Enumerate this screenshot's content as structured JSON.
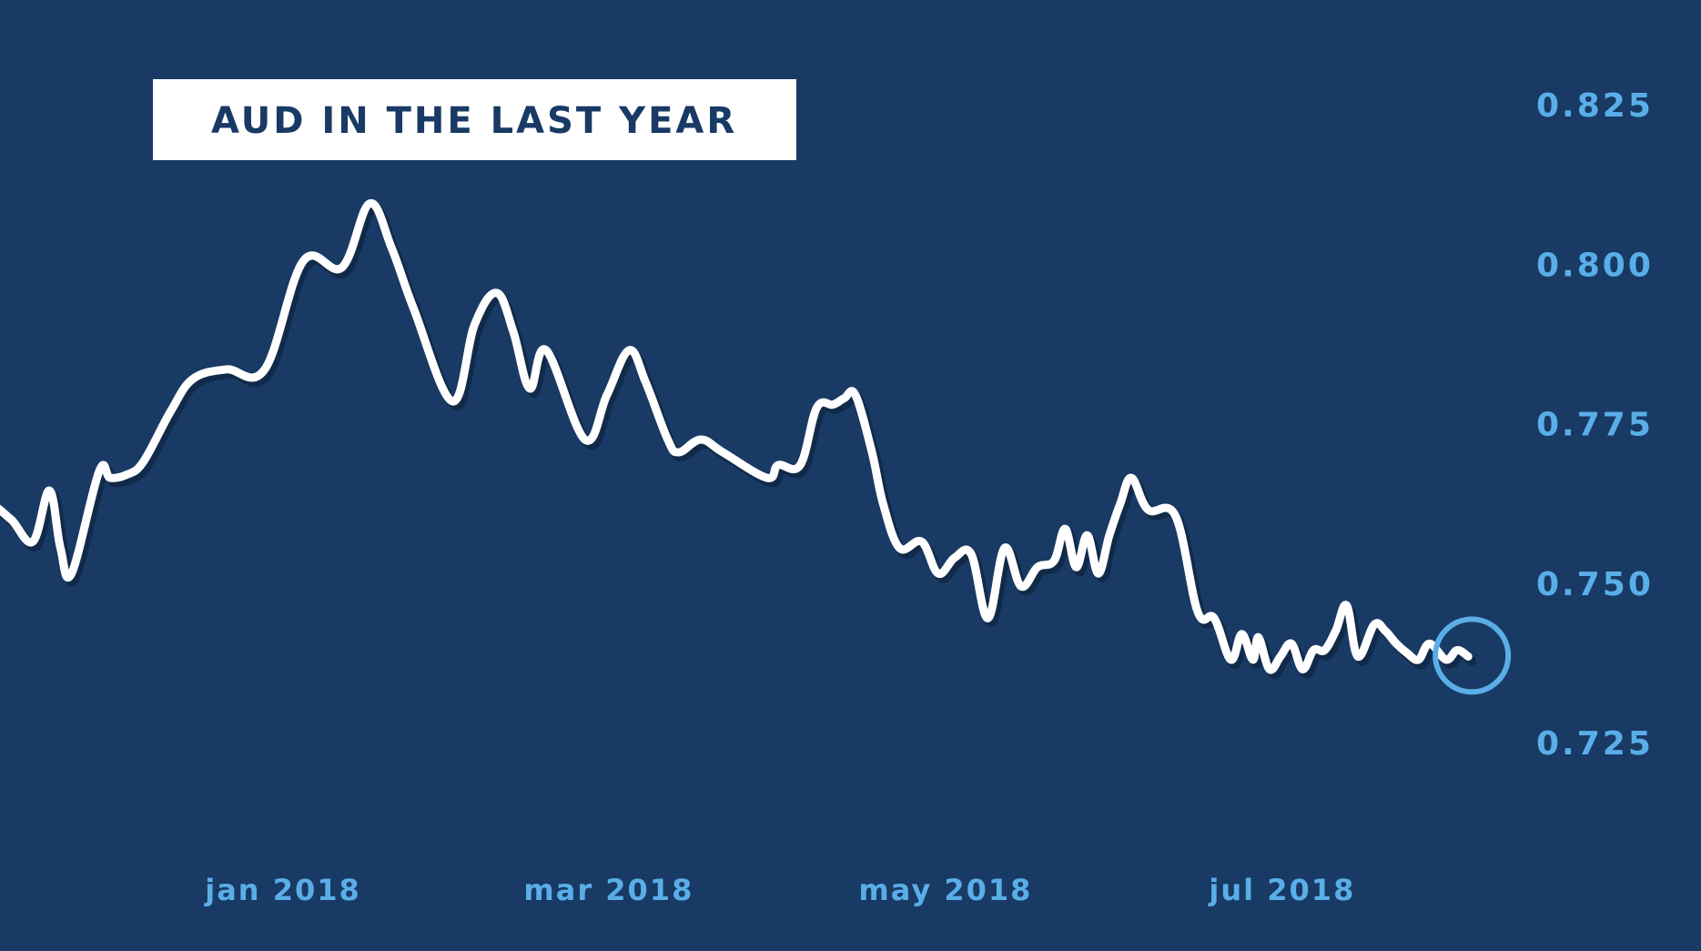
{
  "chart_data": {
    "type": "line",
    "title": "AUD IN THE LAST YEAR",
    "xlabel": "",
    "ylabel": "",
    "x_tick_labels": [
      "jan 2018",
      "mar 2018",
      "may 2018",
      "jul 2018"
    ],
    "y_tick_labels": [
      "0.825",
      "0.800",
      "0.775",
      "0.750",
      "0.725"
    ],
    "y_ticks": [
      0.825,
      0.8,
      0.775,
      0.75,
      0.725
    ],
    "ylim": [
      0.7125,
      0.8375
    ],
    "xlim": [
      "2017-11-08",
      "2018-09-15"
    ],
    "grid": true,
    "legend": "none",
    "x": [
      "2017-11-08",
      "2017-11-10",
      "2017-11-14",
      "2017-11-18",
      "2017-11-21",
      "2017-11-23",
      "2017-11-25",
      "2017-11-30",
      "2017-12-02",
      "2017-12-05",
      "2017-12-08",
      "2017-12-13",
      "2017-12-17",
      "2017-12-23",
      "2017-12-30",
      "2018-01-06",
      "2018-01-13",
      "2018-01-18",
      "2018-01-22",
      "2018-01-26",
      "2018-02-02",
      "2018-02-06",
      "2018-02-10",
      "2018-02-13",
      "2018-02-16",
      "2018-02-19",
      "2018-02-26",
      "2018-03-02",
      "2018-03-06",
      "2018-03-09",
      "2018-03-13",
      "2018-03-15",
      "2018-03-19",
      "2018-03-23",
      "2018-03-31",
      "2018-04-02",
      "2018-04-06",
      "2018-04-09",
      "2018-04-12",
      "2018-04-14",
      "2018-04-16",
      "2018-04-19",
      "2018-04-21",
      "2018-04-24",
      "2018-04-28",
      "2018-05-01",
      "2018-05-04",
      "2018-05-07",
      "2018-05-10",
      "2018-05-13",
      "2018-05-16",
      "2018-05-19",
      "2018-05-22",
      "2018-05-24",
      "2018-05-26",
      "2018-05-28",
      "2018-05-30",
      "2018-06-01",
      "2018-06-03",
      "2018-06-05",
      "2018-06-08",
      "2018-06-13",
      "2018-06-17",
      "2018-06-20",
      "2018-06-23",
      "2018-06-25",
      "2018-06-27",
      "2018-06-28",
      "2018-06-30",
      "2018-07-02",
      "2018-07-04",
      "2018-07-06",
      "2018-07-08",
      "2018-07-10",
      "2018-07-12",
      "2018-07-14",
      "2018-07-16",
      "2018-07-19",
      "2018-07-21",
      "2018-07-23",
      "2018-07-25",
      "2018-07-27",
      "2018-07-29",
      "2018-08-01",
      "2018-08-03",
      "2018-08-05"
    ],
    "series": [
      {
        "values": [
          0.7565,
          0.762,
          0.76,
          0.7565,
          0.7645,
          0.7555,
          0.7515,
          0.7675,
          0.7665,
          0.767,
          0.769,
          0.777,
          0.782,
          0.7835,
          0.7835,
          0.8005,
          0.7995,
          0.8095,
          0.8025,
          0.793,
          0.7785,
          0.7905,
          0.7955,
          0.7895,
          0.7805,
          0.7865,
          0.7725,
          0.7795,
          0.7865,
          0.7815,
          0.7725,
          0.7705,
          0.7725,
          0.7705,
          0.7665,
          0.7685,
          0.7685,
          0.7775,
          0.778,
          0.779,
          0.7795,
          0.7705,
          0.7625,
          0.7555,
          0.7565,
          0.7515,
          0.754,
          0.7545,
          0.7445,
          0.7555,
          0.7495,
          0.7525,
          0.7535,
          0.7585,
          0.7525,
          0.7575,
          0.7515,
          0.7575,
          0.7625,
          0.7665,
          0.7615,
          0.7605,
          0.7455,
          0.7445,
          0.738,
          0.742,
          0.738,
          0.7415,
          0.7365,
          0.7385,
          0.7405,
          0.7365,
          0.7395,
          0.7395,
          0.7425,
          0.7465,
          0.7385,
          0.7435,
          0.7425,
          0.7405,
          0.739,
          0.738,
          0.7405,
          0.738,
          0.7395,
          0.7385
        ]
      }
    ],
    "highlight": {
      "x": "2018-08-05",
      "y": 0.7385
    },
    "colors": {
      "background": "#183a64",
      "grid": "#a9b0bb",
      "line": "#ffffff",
      "tick_labels": "#5aaee8",
      "title_box": "#ffffff",
      "title_text": "#183a64",
      "highlight": "#5aaee8"
    }
  }
}
